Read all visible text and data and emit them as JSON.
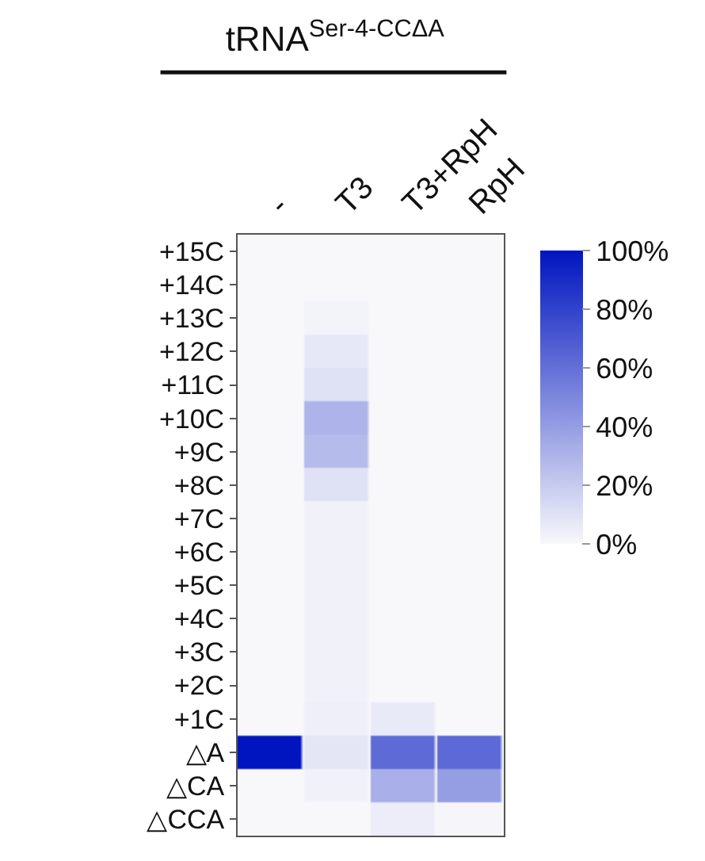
{
  "chart_data": {
    "type": "heatmap",
    "title": "tRNA$^{Ser-4-CCΔA}$",
    "categories": [
      "-",
      "T3",
      "T3+RpH",
      "RpH"
    ],
    "y_categories": [
      "+15C",
      "+14C",
      "+13C",
      "+12C",
      "+11C",
      "+10C",
      "+9C",
      "+8C",
      "+7C",
      "+6C",
      "+5C",
      "+4C",
      "+3C",
      "+2C",
      "+1C",
      "△A",
      "△CA",
      "△CCA"
    ],
    "cells": [
      [
        0,
        0,
        0,
        0
      ],
      [
        0,
        0,
        0,
        0
      ],
      [
        0,
        2,
        0,
        0
      ],
      [
        0,
        7,
        0,
        0
      ],
      [
        0,
        10,
        0,
        0
      ],
      [
        0,
        30,
        0,
        0
      ],
      [
        0,
        27,
        0,
        0
      ],
      [
        0,
        10,
        0,
        0
      ],
      [
        0,
        3,
        0,
        0
      ],
      [
        0,
        3,
        0,
        0
      ],
      [
        0,
        3,
        0,
        0
      ],
      [
        0,
        3,
        0,
        0
      ],
      [
        0,
        3,
        0,
        0
      ],
      [
        0,
        3,
        0,
        0
      ],
      [
        0,
        4,
        6,
        0
      ],
      [
        100,
        8,
        62,
        63
      ],
      [
        0,
        3,
        32,
        40
      ],
      [
        0,
        0,
        5,
        1
      ]
    ],
    "color": "#0015c0",
    "clim": [
      0,
      100
    ],
    "cticks": [
      {
        "value": 0,
        "label": "0%"
      },
      {
        "value": 20,
        "label": "20%"
      },
      {
        "value": 40,
        "label": "40%"
      },
      {
        "value": 60,
        "label": "60%"
      },
      {
        "value": 80,
        "label": "80%"
      },
      {
        "value": 100,
        "label": "100%"
      }
    ]
  }
}
